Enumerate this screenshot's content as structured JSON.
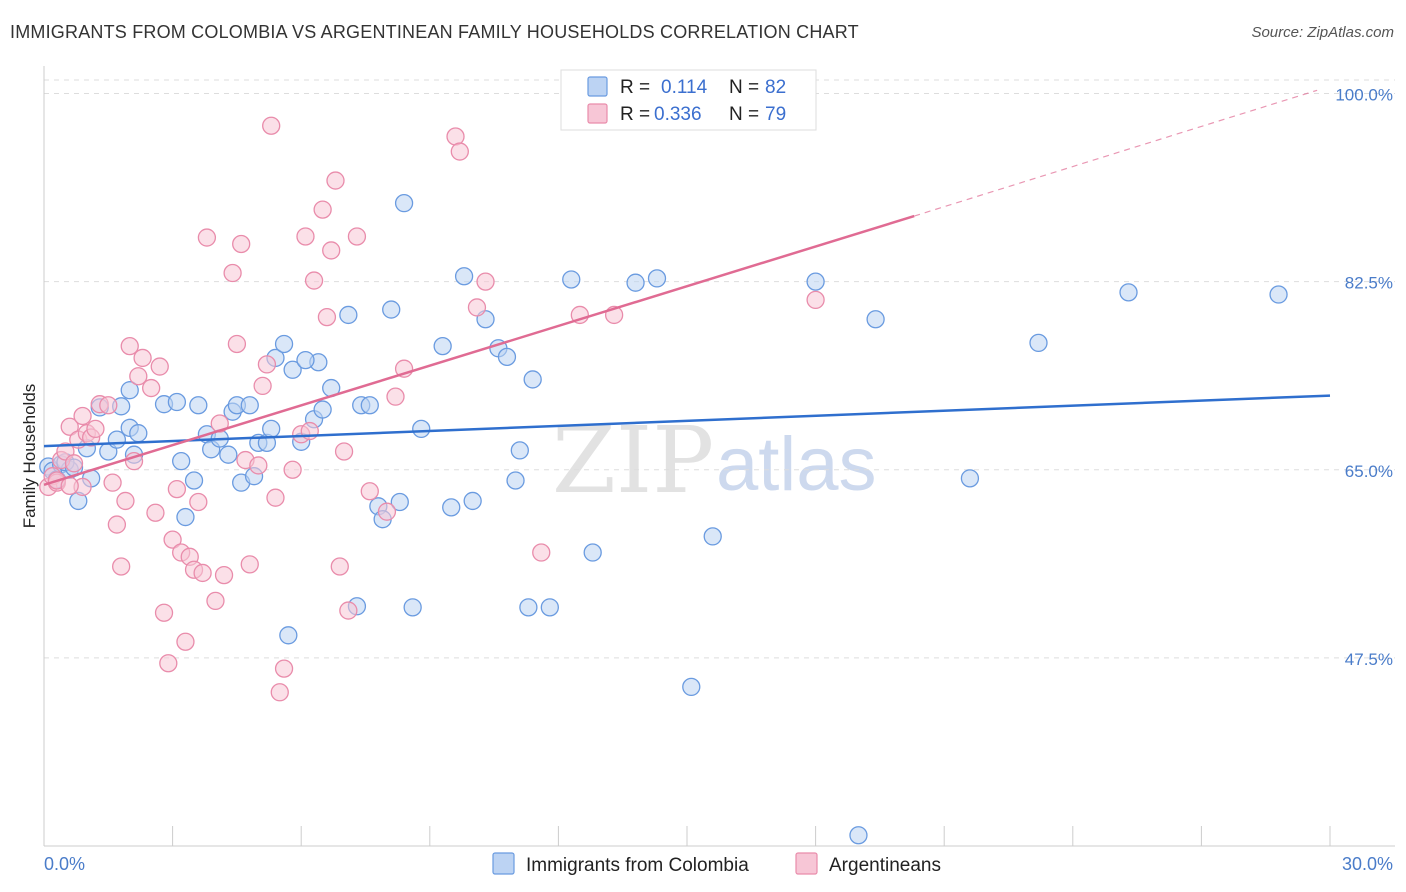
{
  "header": {
    "title": "IMMIGRANTS FROM COLOMBIA VS ARGENTINEAN FAMILY HOUSEHOLDS CORRELATION CHART",
    "source": "Source: ZipAtlas.com"
  },
  "watermark": {
    "zip": "ZIP",
    "atlas": "atlas"
  },
  "colors": {
    "blue": "#6a9be0",
    "blue_fill": "#bcd3f3",
    "blue_line": "#2f6fce",
    "pink": "#e98cab",
    "pink_fill": "#f7c6d6",
    "pink_line": "#e06b93",
    "grid": "#dddddd"
  },
  "legend": {
    "rows": [
      {
        "r_label": "R =",
        "r_value": "0.114",
        "n_label": "N =",
        "n_value": "82"
      },
      {
        "r_label": "R =",
        "r_value": "0.336",
        "n_label": "N =",
        "n_value": "79"
      }
    ]
  },
  "chart_data": {
    "type": "scatter",
    "title": "IMMIGRANTS FROM COLOMBIA VS ARGENTINEAN FAMILY HOUSEHOLDS CORRELATION CHART",
    "xlabel": "",
    "ylabel": "Family Households",
    "xlim": [
      0,
      30
    ],
    "ylim": [
      30,
      102
    ],
    "x_tick_labels": [
      "0.0%",
      "30.0%"
    ],
    "y_ticks": [
      47.5,
      65.0,
      82.5,
      100.0
    ],
    "y_tick_labels": [
      "47.5%",
      "65.0%",
      "82.5%",
      "100.0%"
    ],
    "grid": true,
    "legend_position": "top-center",
    "series": [
      {
        "name": "Immigrants from Colombia",
        "color": "#6a9be0",
        "trend": {
          "x": [
            0,
            30
          ],
          "y": [
            67.2,
            71.9
          ]
        },
        "points": [
          [
            0.1,
            65.3
          ],
          [
            0.2,
            64.9
          ],
          [
            0.3,
            64.1
          ],
          [
            0.4,
            65.5
          ],
          [
            0.6,
            65.0
          ],
          [
            0.8,
            62.1
          ],
          [
            1.0,
            67.0
          ],
          [
            1.1,
            64.2
          ],
          [
            1.3,
            70.8
          ],
          [
            1.5,
            66.7
          ],
          [
            1.7,
            67.8
          ],
          [
            1.8,
            70.9
          ],
          [
            2.0,
            68.9
          ],
          [
            2.1,
            66.4
          ],
          [
            2.2,
            68.4
          ],
          [
            2.0,
            72.4
          ],
          [
            2.8,
            71.1
          ],
          [
            3.1,
            71.3
          ],
          [
            3.2,
            65.8
          ],
          [
            3.3,
            60.6
          ],
          [
            3.5,
            64.0
          ],
          [
            3.6,
            71.0
          ],
          [
            3.8,
            68.3
          ],
          [
            3.9,
            66.9
          ],
          [
            4.1,
            67.9
          ],
          [
            4.3,
            66.4
          ],
          [
            4.4,
            70.4
          ],
          [
            4.5,
            71.0
          ],
          [
            4.6,
            63.8
          ],
          [
            4.8,
            71.0
          ],
          [
            4.9,
            64.4
          ],
          [
            5.0,
            67.5
          ],
          [
            5.2,
            67.5
          ],
          [
            5.3,
            68.8
          ],
          [
            5.4,
            75.4
          ],
          [
            5.6,
            76.7
          ],
          [
            5.8,
            74.3
          ],
          [
            6.0,
            67.6
          ],
          [
            6.3,
            69.7
          ],
          [
            6.4,
            75.0
          ],
          [
            6.5,
            70.6
          ],
          [
            6.7,
            72.6
          ],
          [
            7.1,
            79.4
          ],
          [
            7.4,
            71.0
          ],
          [
            7.6,
            71.0
          ],
          [
            7.8,
            61.6
          ],
          [
            7.9,
            60.4
          ],
          [
            8.1,
            79.9
          ],
          [
            8.3,
            62.0
          ],
          [
            8.4,
            89.8
          ],
          [
            8.8,
            68.8
          ],
          [
            9.3,
            76.5
          ],
          [
            9.5,
            61.5
          ],
          [
            9.8,
            83.0
          ],
          [
            10.0,
            62.1
          ],
          [
            10.3,
            79.0
          ],
          [
            10.6,
            76.3
          ],
          [
            10.8,
            75.5
          ],
          [
            11.0,
            64.0
          ],
          [
            11.1,
            66.8
          ],
          [
            11.4,
            73.4
          ],
          [
            11.3,
            52.2
          ],
          [
            11.8,
            52.2
          ],
          [
            12.3,
            82.7
          ],
          [
            12.8,
            57.3
          ],
          [
            13.8,
            82.4
          ],
          [
            14.3,
            82.8
          ],
          [
            15.1,
            44.8
          ],
          [
            15.6,
            58.8
          ],
          [
            18.0,
            82.5
          ],
          [
            19.0,
            31.0
          ],
          [
            19.4,
            79.0
          ],
          [
            21.6,
            64.2
          ],
          [
            23.2,
            76.8
          ],
          [
            25.3,
            81.5
          ],
          [
            28.8,
            81.3
          ],
          [
            7.3,
            52.3
          ],
          [
            8.6,
            52.2
          ],
          [
            5.7,
            49.6
          ],
          [
            6.1,
            75.2
          ],
          [
            0.5,
            65.7
          ],
          [
            0.7,
            65.2
          ]
        ]
      },
      {
        "name": "Argentineans",
        "color": "#e98cab",
        "trend": {
          "x": [
            0,
            20.3
          ],
          "y": [
            63.6,
            88.6
          ]
        },
        "trend_extension": {
          "x": [
            20.3,
            29.7
          ],
          "y": [
            88.6,
            100.3
          ]
        },
        "points": [
          [
            0.1,
            63.4
          ],
          [
            0.2,
            64.4
          ],
          [
            0.3,
            63.8
          ],
          [
            0.4,
            65.9
          ],
          [
            0.5,
            66.7
          ],
          [
            0.6,
            69.0
          ],
          [
            0.7,
            65.6
          ],
          [
            0.8,
            67.8
          ],
          [
            0.9,
            70.0
          ],
          [
            1.0,
            68.4
          ],
          [
            1.1,
            68.0
          ],
          [
            1.2,
            68.8
          ],
          [
            1.3,
            71.1
          ],
          [
            1.5,
            71.0
          ],
          [
            1.6,
            63.8
          ],
          [
            1.7,
            59.9
          ],
          [
            1.8,
            56.0
          ],
          [
            1.9,
            62.1
          ],
          [
            2.0,
            76.5
          ],
          [
            2.1,
            65.8
          ],
          [
            2.2,
            73.7
          ],
          [
            2.3,
            75.4
          ],
          [
            2.5,
            72.6
          ],
          [
            2.6,
            61.0
          ],
          [
            2.7,
            74.6
          ],
          [
            2.8,
            51.7
          ],
          [
            2.9,
            47.0
          ],
          [
            3.0,
            58.5
          ],
          [
            3.1,
            63.2
          ],
          [
            3.2,
            57.3
          ],
          [
            3.3,
            49.0
          ],
          [
            3.4,
            56.9
          ],
          [
            3.5,
            55.7
          ],
          [
            3.6,
            62.0
          ],
          [
            3.7,
            55.4
          ],
          [
            3.8,
            86.6
          ],
          [
            4.0,
            52.8
          ],
          [
            4.1,
            69.3
          ],
          [
            4.2,
            55.2
          ],
          [
            4.4,
            83.3
          ],
          [
            4.5,
            76.7
          ],
          [
            4.6,
            86.0
          ],
          [
            4.7,
            65.9
          ],
          [
            4.8,
            56.2
          ],
          [
            5.0,
            65.4
          ],
          [
            5.1,
            72.8
          ],
          [
            5.2,
            74.8
          ],
          [
            5.3,
            97.0
          ],
          [
            5.4,
            62.4
          ],
          [
            5.5,
            44.3
          ],
          [
            5.6,
            46.5
          ],
          [
            5.8,
            65.0
          ],
          [
            6.0,
            68.3
          ],
          [
            6.1,
            86.7
          ],
          [
            6.2,
            68.6
          ],
          [
            6.3,
            82.6
          ],
          [
            6.5,
            89.2
          ],
          [
            6.6,
            79.2
          ],
          [
            6.7,
            85.4
          ],
          [
            6.8,
            91.9
          ],
          [
            6.9,
            56.0
          ],
          [
            7.0,
            66.7
          ],
          [
            7.1,
            51.9
          ],
          [
            7.3,
            86.7
          ],
          [
            7.6,
            63.0
          ],
          [
            8.0,
            61.1
          ],
          [
            8.2,
            71.8
          ],
          [
            8.4,
            74.4
          ],
          [
            9.6,
            96.0
          ],
          [
            9.7,
            94.6
          ],
          [
            10.1,
            80.1
          ],
          [
            10.3,
            82.5
          ],
          [
            11.6,
            57.3
          ],
          [
            12.5,
            79.4
          ],
          [
            13.3,
            79.4
          ],
          [
            18.0,
            80.8
          ],
          [
            0.9,
            63.4
          ],
          [
            0.3,
            64.0
          ],
          [
            0.6,
            63.5
          ]
        ]
      }
    ]
  }
}
